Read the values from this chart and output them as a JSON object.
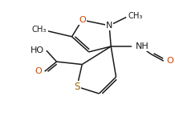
{
  "bg_color": "#ffffff",
  "line_color": "#1a1a1a",
  "figsize": [
    2.18,
    1.75
  ],
  "dpi": 100,
  "xlim": [
    0,
    10
  ],
  "ylim": [
    0,
    10
  ]
}
